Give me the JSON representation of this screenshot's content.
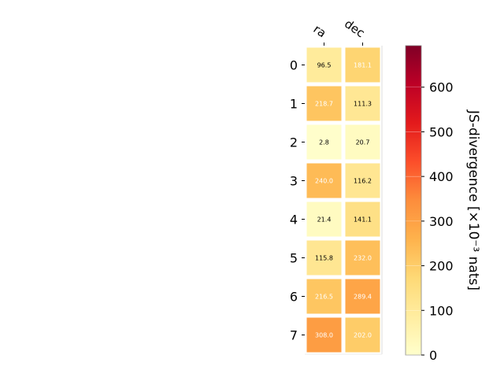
{
  "chart_data": {
    "type": "heatmap",
    "title": "",
    "xlabel": "",
    "ylabel": "",
    "columns": [
      "ra",
      "dec"
    ],
    "rows": [
      "0",
      "1",
      "2",
      "3",
      "4",
      "5",
      "6",
      "7"
    ],
    "values": [
      [
        96.5,
        181.1
      ],
      [
        218.7,
        111.3
      ],
      [
        2.8,
        20.7
      ],
      [
        240.0,
        116.2
      ],
      [
        21.4,
        141.1
      ],
      [
        115.8,
        232.0
      ],
      [
        216.5,
        289.4
      ],
      [
        308.0,
        202.0
      ]
    ],
    "value_labels": [
      [
        "96.5",
        "181.1"
      ],
      [
        "218.7",
        "111.3"
      ],
      [
        "2.8",
        "20.7"
      ],
      [
        "240.0",
        "116.2"
      ],
      [
        "21.4",
        "141.1"
      ],
      [
        "115.8",
        "232.0"
      ],
      [
        "216.5",
        "289.4"
      ],
      [
        "308.0",
        "202.0"
      ]
    ],
    "colorbar": {
      "label": "JS-divergence [×10⁻³ nats]",
      "range": [
        0,
        693
      ],
      "ticks": [
        0,
        100,
        200,
        300,
        400,
        500,
        600
      ],
      "colormap": "YlOrRd",
      "colormap_stops": [
        "#ffffcc",
        "#ffeda0",
        "#fed976",
        "#feb24c",
        "#fd8d3c",
        "#fc4e2a",
        "#e31a1c",
        "#bd0026",
        "#800026"
      ]
    },
    "label_color_threshold": 150,
    "text_color_dark": "#000000",
    "text_color_light": "#ffffff",
    "grid": false
  }
}
